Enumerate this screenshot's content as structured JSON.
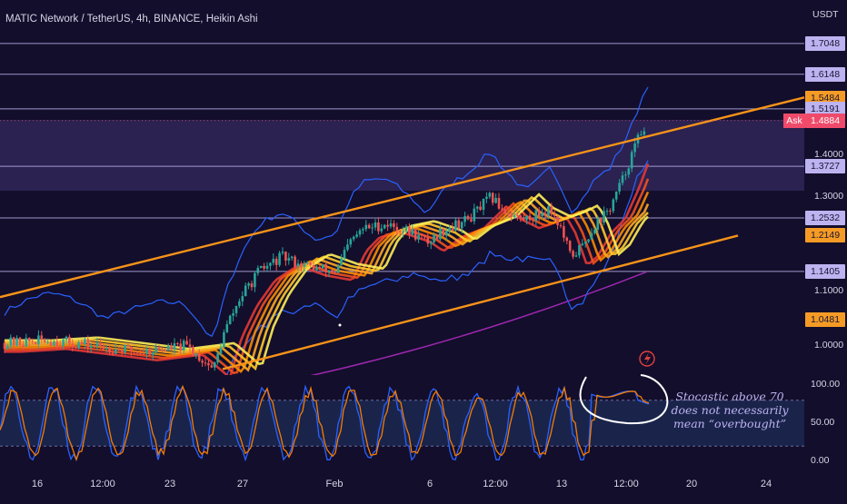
{
  "header": {
    "title": "MATIC Network / TetherUS, 4h, BINANCE, Heikin Ashi",
    "currency": "USDT"
  },
  "colors": {
    "background": "#130e2b",
    "bull": "#26a69a",
    "bear": "#ef5350",
    "channel": "#f7931a",
    "bollinger": "#2962ff",
    "ma_long": "#9c27b0",
    "levels": "#b7b0ea",
    "stoch_k": "#2962ff",
    "stoch_d": "#f57c00"
  },
  "chart_data": [
    {
      "type": "candlestick",
      "style": "Heikin Ashi",
      "symbol": "MATIC Network / TetherUS",
      "interval": "4h",
      "exchange": "BINANCE",
      "ylim": [
        0.95,
        1.76
      ],
      "y_scale": "log",
      "x_ticks": [
        "16",
        "12:00",
        "23",
        "12:00",
        "27",
        "Feb",
        "6",
        "12:00",
        "13",
        "12:00",
        "20",
        "24"
      ],
      "price_ticks": [
        {
          "label": "1.7048",
          "value": 1.7048,
          "style": "lavender"
        },
        {
          "label": "1.6148",
          "value": 1.6148,
          "style": "lavender"
        },
        {
          "label": "1.5484",
          "value": 1.5484,
          "style": "orange"
        },
        {
          "label": "1.5191",
          "value": 1.5191,
          "style": "lavender"
        },
        {
          "label": "1.4884",
          "value": 1.4884,
          "style": "red",
          "prefix": "Ask"
        },
        {
          "label": "1.4000",
          "value": 1.4,
          "style": "plain"
        },
        {
          "label": "1.3727",
          "value": 1.3727,
          "style": "lavender"
        },
        {
          "label": "1.3000",
          "value": 1.3,
          "style": "plain"
        },
        {
          "label": "1.2532",
          "value": 1.2532,
          "style": "lavender"
        },
        {
          "label": "1.2149",
          "value": 1.2149,
          "style": "orange"
        },
        {
          "label": "1.1405",
          "value": 1.1405,
          "style": "lavender"
        },
        {
          "label": "1.1000",
          "value": 1.1,
          "style": "plain"
        },
        {
          "label": "1.0481",
          "value": 1.0481,
          "style": "orange"
        },
        {
          "label": "1.0000",
          "value": 1.0,
          "style": "plain"
        }
      ],
      "horizontal_levels": [
        1.7048,
        1.6148,
        1.5191,
        1.3727,
        1.2532,
        1.1405
      ],
      "shaded_zone": [
        1.315,
        1.49
      ],
      "channel_upper": [
        [
          0,
          1.09
        ],
        [
          885,
          1.55
        ]
      ],
      "channel_lower": [
        [
          245,
          0.96
        ],
        [
          812,
          1.2149
        ]
      ],
      "path": [
        [
          5,
          1.005
        ],
        [
          55,
          1.01
        ],
        [
          105,
          1.0
        ],
        [
          155,
          0.99
        ],
        [
          205,
          1.0
        ],
        [
          235,
          0.96
        ],
        [
          248,
          1.03
        ],
        [
          265,
          1.09
        ],
        [
          285,
          1.14
        ],
        [
          310,
          1.17
        ],
        [
          340,
          1.15
        ],
        [
          370,
          1.14
        ],
        [
          385,
          1.2
        ],
        [
          400,
          1.23
        ],
        [
          425,
          1.24
        ],
        [
          455,
          1.22
        ],
        [
          470,
          1.2
        ],
        [
          490,
          1.23
        ],
        [
          515,
          1.25
        ],
        [
          540,
          1.3
        ],
        [
          555,
          1.27
        ],
        [
          575,
          1.25
        ],
        [
          590,
          1.26
        ],
        [
          605,
          1.275
        ],
        [
          615,
          1.24
        ],
        [
          628,
          1.17
        ],
        [
          640,
          1.19
        ],
        [
          655,
          1.24
        ],
        [
          670,
          1.27
        ],
        [
          685,
          1.34
        ],
        [
          700,
          1.43
        ],
        [
          712,
          1.49
        ]
      ],
      "pivot": 365
    },
    {
      "type": "line",
      "name": "Stochastic",
      "ylim": [
        0,
        100
      ],
      "y_ticks": [
        100,
        50,
        0
      ],
      "y_tick_labels": [
        "100.00",
        "50.00",
        "0.00"
      ],
      "bands": [
        80,
        20
      ],
      "cycles_per_width": 19,
      "overbought_from_x": 650
    }
  ],
  "annotation": "Stocastic above 70 does not necessarily mean “overbought”"
}
